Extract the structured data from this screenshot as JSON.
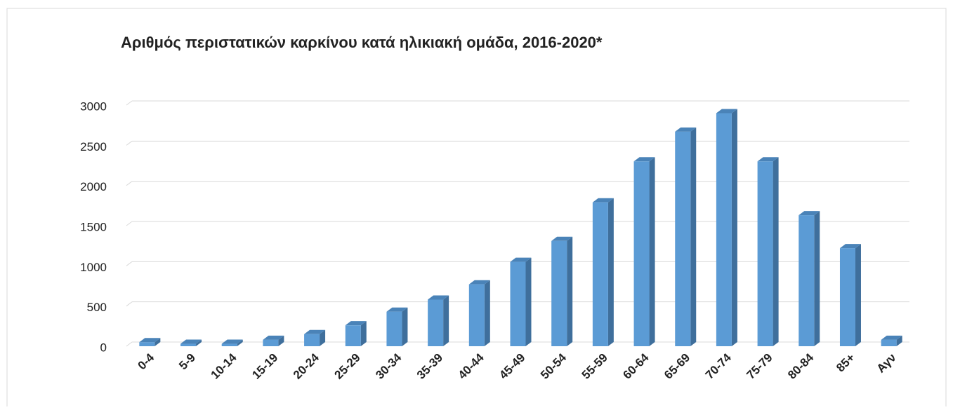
{
  "chart_data": {
    "type": "bar",
    "title": "Αριθμός περιστατικών καρκίνου κατά ηλικιακή ομάδα, 2016-2020*",
    "categories": [
      "0-4",
      "5-9",
      "10-14",
      "15-19",
      "20-24",
      "25-29",
      "30-34",
      "35-39",
      "40-44",
      "45-49",
      "50-54",
      "55-59",
      "60-64",
      "65-69",
      "70-74",
      "75-79",
      "80-84",
      "85+",
      "Αγν"
    ],
    "values": [
      50,
      30,
      30,
      80,
      150,
      260,
      430,
      580,
      770,
      1050,
      1310,
      1790,
      2300,
      2670,
      2900,
      2300,
      1630,
      1220,
      80
    ],
    "color": "#5b9bd5",
    "ylim": [
      0,
      3000
    ],
    "yticks": [
      0,
      500,
      1000,
      1500,
      2000,
      2500,
      3000
    ],
    "grid": true
  }
}
